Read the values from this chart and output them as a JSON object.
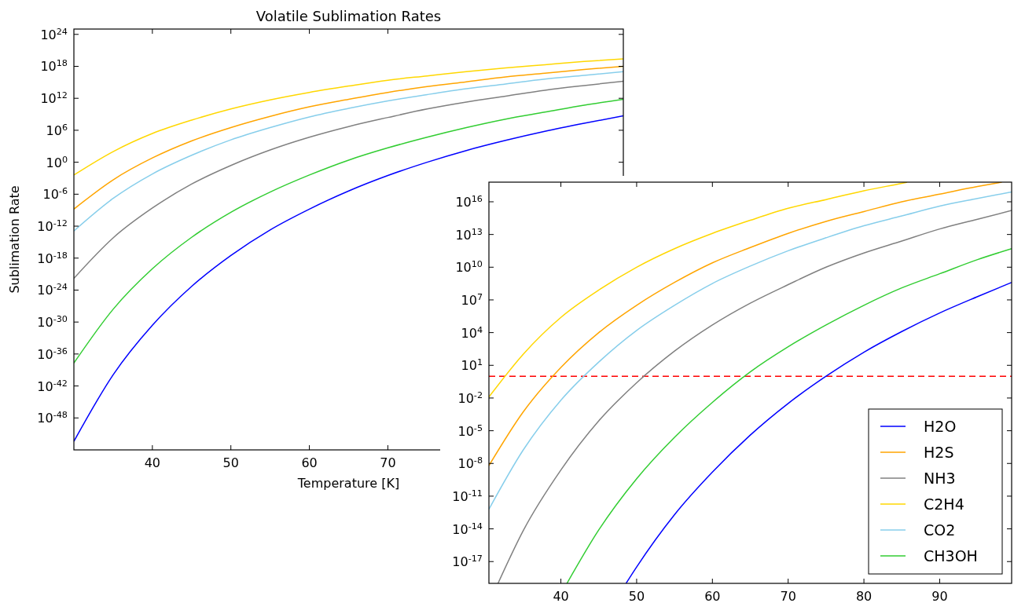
{
  "chart_data": [
    {
      "type": "line",
      "title": "Volatile Sublimation Rates",
      "xlabel": "Temperature [K]",
      "ylabel": "Sublimation Rate",
      "log": "y",
      "x": [
        30,
        35,
        40,
        45,
        50,
        55,
        60,
        65,
        70,
        75,
        80,
        85,
        90,
        95,
        100
      ],
      "xlim": [
        30,
        100
      ],
      "xticks": [
        40,
        50,
        60,
        70
      ],
      "ylim": [
        1e-54,
        1e+25
      ],
      "yticks": [
        {
          "value": 1e+24,
          "label": "10$^{24}$"
        },
        {
          "value": 1e+18,
          "label": "10$^{18}$"
        },
        {
          "value": 1000000000000.0,
          "label": "10$^{12}$"
        },
        {
          "value": 1000000.0,
          "label": "10$^{6}$"
        },
        {
          "value": 1,
          "label": "10$^{0}$"
        },
        {
          "value": 1e-06,
          "label": "10$^{-6}$"
        },
        {
          "value": 1e-12,
          "label": "10$^{-12}$"
        },
        {
          "value": 1e-18,
          "label": "10$^{-18}$"
        },
        {
          "value": 1e-24,
          "label": "10$^{-24}$"
        },
        {
          "value": 1e-30,
          "label": "10$^{-30}$"
        },
        {
          "value": 1e-36,
          "label": "10$^{-36}$"
        },
        {
          "value": 1e-42,
          "label": "10$^{-42}$"
        },
        {
          "value": 1e-48,
          "label": "10$^{-48}$"
        }
      ],
      "series": [
        {
          "color": "#0000ff",
          "values": [
            4e-53,
            1.26e-40,
            2.5e-31,
            5e-24,
            3.2e-18,
            2e-13,
            1.6e-09,
            4e-06,
            0.0032,
            1,
            160,
            12600.0,
            630000.0,
            20000000.0,
            500000000.0
          ]
        },
        {
          "color": "#ffa500",
          "values": [
            1.6e-09,
            0.0005,
            6.3,
            10000.0,
            3200000.0,
            400000000.0,
            25000000000.0,
            630000000000.0,
            12600000000000.0,
            160000000000000.0,
            1260000000000000.0,
            1e+16,
            5e+16,
            2.5e+17,
            1e+18
          ]
        },
        {
          "color": "#808080",
          "values": [
            1.6e-22,
            6.3e-15,
            2.5e-09,
            8e-05,
            0.25,
            200,
            50000.0,
            5000000.0,
            250000000.0,
            10000000000.0,
            200000000000.0,
            2500000000000.0,
            32000000000000.0,
            250000000000000.0,
            1600000000000000.0
          ]
        },
        {
          "color": "#ffd700",
          "values": [
            0.004,
            100,
            250000.0,
            80000000.0,
            10000000000.0,
            500000000000.0,
            12600000000000.0,
            200000000000000.0,
            2500000000000000.0,
            1.6e+16,
            1e+17,
            5e+17,
            2e+18,
            8e+18,
            2.5e+19
          ]
        },
        {
          "color": "#87ceeb",
          "values": [
            1.26e-13,
            1.6e-07,
            0.0063,
            20,
            16000.0,
            3200000.0,
            320000000.0,
            12600000000.0,
            320000000000.0,
            5000000000000.0,
            63000000000000.0,
            500000000000000.0,
            4000000000000000.0,
            2e+16,
            1e+17
          ]
        },
        {
          "color": "#32cd32",
          "values": [
            2e-38,
            2.5e-28,
            1e-20,
            8e-15,
            4e-10,
            2.5e-06,
            0.004,
            2.5,
            500,
            50000.0,
            3200000.0,
            126000000.0,
            2500000000.0,
            50000000000.0,
            630000000000.0
          ]
        }
      ]
    },
    {
      "type": "line",
      "log": "y",
      "legend": "bottom right",
      "xlim": [
        30.5,
        99.5
      ],
      "xticks": [
        40,
        50,
        60,
        70,
        80,
        90
      ],
      "ylim": [
        1e-19,
        6.3e+17
      ],
      "yticks": [
        {
          "value": 1e+16,
          "label": "10$^{16}$"
        },
        {
          "value": 10000000000000.0,
          "label": "10$^{13}$"
        },
        {
          "value": 10000000000.0,
          "label": "10$^{10}$"
        },
        {
          "value": 10000000.0,
          "label": "10$^{7}$"
        },
        {
          "value": 10000.0,
          "label": "10$^{4}$"
        },
        {
          "value": 10,
          "label": "10$^{1}$"
        },
        {
          "value": 0.01,
          "label": "10$^{-2}$"
        },
        {
          "value": 1e-05,
          "label": "10$^{-5}$"
        },
        {
          "value": 1e-08,
          "label": "10$^{-8}$"
        },
        {
          "value": 1e-11,
          "label": "10$^{-11}$"
        },
        {
          "value": 1e-14,
          "label": "10$^{-14}$"
        },
        {
          "value": 1e-17,
          "label": "10$^{-17}$"
        }
      ],
      "ref_lines": [
        {
          "axis": "y",
          "value": 1,
          "color": "#ff0000",
          "line_style": "dashed"
        }
      ],
      "series": [
        {
          "name": "H2O",
          "color": "#0000ff",
          "x": [
            48.6,
            50,
            55,
            60,
            65,
            70,
            75,
            80,
            85,
            90,
            95,
            99.5
          ],
          "values": [
            1e-19,
            3.2e-18,
            2e-13,
            1.6e-09,
            4e-06,
            0.0032,
            1,
            160,
            12600.0,
            630000.0,
            20000000.0,
            400000000.0
          ]
        },
        {
          "name": "H2S",
          "color": "#ffa500",
          "x": [
            30.5,
            35,
            40,
            45,
            50,
            55,
            60,
            65,
            70,
            75,
            80,
            85,
            90,
            95,
            98.2
          ],
          "values": [
            6.3e-09,
            0.0005,
            6.3,
            10000.0,
            3200000.0,
            400000000.0,
            25000000000.0,
            630000000000.0,
            12600000000000.0,
            160000000000000.0,
            1260000000000000.0,
            1e+16,
            5e+16,
            2.5e+17,
            6.3e+17
          ]
        },
        {
          "name": "NH3",
          "color": "#808080",
          "x": [
            31.7,
            35,
            40,
            45,
            50,
            55,
            60,
            65,
            70,
            75,
            80,
            85,
            90,
            95,
            99.5
          ],
          "values": [
            1e-19,
            6.3e-15,
            2.5e-09,
            8e-05,
            0.25,
            200,
            50000.0,
            5000000.0,
            250000000.0,
            10000000000.0,
            200000000000.0,
            2500000000000.0,
            32000000000000.0,
            250000000000000.0,
            1600000000000000.0
          ]
        },
        {
          "name": "C2H4",
          "color": "#ffd700",
          "x": [
            30.5,
            35,
            40,
            45,
            50,
            55,
            60,
            65,
            70,
            75,
            80,
            85,
            85.7
          ],
          "values": [
            0.0126,
            100,
            250000.0,
            80000000.0,
            10000000000.0,
            500000000000.0,
            12600000000000.0,
            200000000000000.0,
            2500000000000000.0,
            1.6e+16,
            1e+17,
            5e+17,
            6.3e+17
          ]
        },
        {
          "name": "CO2",
          "color": "#87ceeb",
          "x": [
            30.5,
            35,
            40,
            45,
            50,
            55,
            60,
            65,
            70,
            75,
            80,
            85,
            90,
            95,
            99.5
          ],
          "values": [
            6.3e-13,
            1.6e-07,
            0.0063,
            20,
            16000.0,
            3200000.0,
            320000000.0,
            12600000000.0,
            320000000000.0,
            5000000000000.0,
            63000000000000.0,
            500000000000000.0,
            4000000000000000.0,
            2e+16,
            8e+16
          ]
        },
        {
          "name": "CH3OH",
          "color": "#32cd32",
          "x": [
            40.8,
            45,
            50,
            55,
            60,
            65,
            70,
            75,
            80,
            85,
            90,
            95,
            99.5
          ],
          "values": [
            1e-19,
            8e-15,
            4e-10,
            2.5e-06,
            0.004,
            2.5,
            500,
            50000.0,
            3200000.0,
            126000000.0,
            2500000000.0,
            50000000000.0,
            500000000000.0
          ]
        }
      ]
    }
  ]
}
